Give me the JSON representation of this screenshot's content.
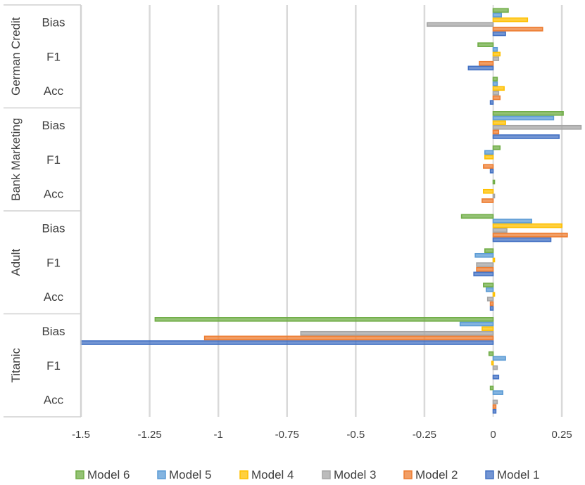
{
  "chart_data": {
    "type": "bar",
    "orientation": "horizontal",
    "title": "",
    "xlabel": "",
    "ylabel": "",
    "xlim": [
      -1.5,
      0.25
    ],
    "x_ticks": [
      -1.5,
      -1.25,
      -1,
      -0.75,
      -0.5,
      -0.25,
      0,
      0.25
    ],
    "x_tick_labels": [
      "-1.5",
      "-1.25",
      "-1",
      "-0.75",
      "-0.5",
      "-0.25",
      "0",
      "0.25"
    ],
    "grid": true,
    "legend_position": "bottom",
    "groups": [
      {
        "name": "Titanic",
        "categories": [
          "Acc",
          "F1",
          "Bias"
        ]
      },
      {
        "name": "Adult",
        "categories": [
          "Acc",
          "F1",
          "Bias"
        ]
      },
      {
        "name": "Bank Marketing",
        "categories": [
          "Acc",
          "F1",
          "Bias"
        ]
      },
      {
        "name": "German Credit",
        "categories": [
          "Acc",
          "F1",
          "Bias"
        ]
      }
    ],
    "categories": [
      "Titanic Acc",
      "Titanic F1",
      "Titanic Bias",
      "Adult Acc",
      "Adult F1",
      "Adult Bias",
      "Bank Marketing Acc",
      "Bank Marketing F1",
      "Bank Marketing Bias",
      "German Credit Acc",
      "German Credit F1",
      "German Credit Bias"
    ],
    "series": [
      {
        "name": "Model 1",
        "color": "#4472C4",
        "values": [
          0.01,
          0.02,
          -1.5,
          -0.01,
          -0.07,
          0.21,
          0.0,
          -0.01,
          0.24,
          -0.01,
          -0.09,
          0.045
        ]
      },
      {
        "name": "Model 2",
        "color": "#ED7D31",
        "values": [
          0.01,
          0.0,
          -1.05,
          -0.01,
          -0.06,
          0.27,
          -0.04,
          -0.035,
          0.02,
          0.025,
          -0.05,
          0.18
        ]
      },
      {
        "name": "Model 3",
        "color": "#A5A5A5",
        "values": [
          0.015,
          0.015,
          -0.7,
          -0.02,
          -0.06,
          0.05,
          0.005,
          0.0,
          0.32,
          0.02,
          0.02,
          -0.24
        ]
      },
      {
        "name": "Model 4",
        "color": "#FFC000",
        "values": [
          0.0,
          -0.005,
          -0.04,
          0.005,
          0.005,
          0.25,
          -0.035,
          -0.03,
          0.045,
          0.04,
          0.025,
          0.125
        ]
      },
      {
        "name": "Model 5",
        "color": "#5B9BD5",
        "values": [
          0.035,
          0.045,
          -0.12,
          -0.025,
          -0.065,
          0.14,
          0.0,
          -0.03,
          0.22,
          0.015,
          0.015,
          0.03
        ]
      },
      {
        "name": "Model 6",
        "color": "#70AD47",
        "values": [
          -0.01,
          -0.015,
          -1.23,
          -0.035,
          -0.03,
          -0.115,
          0.005,
          0.025,
          0.255,
          0.015,
          -0.055,
          0.055
        ]
      }
    ],
    "legend_order": [
      "Model 6",
      "Model 5",
      "Model 4",
      "Model 3",
      "Model 2",
      "Model 1"
    ]
  }
}
